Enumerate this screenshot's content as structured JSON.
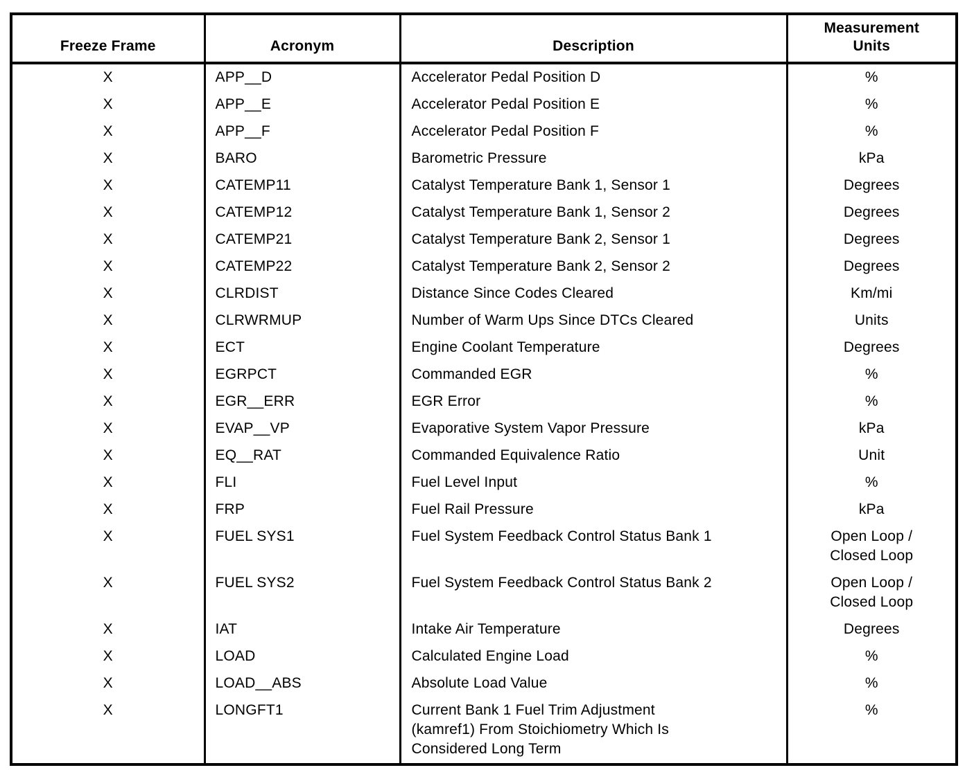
{
  "table": {
    "headers": {
      "freeze_frame": "Freeze Frame",
      "acronym": "Acronym",
      "description": "Description",
      "units": "Measurement\nUnits"
    },
    "rows": [
      {
        "freeze_frame": "X",
        "acronym": "APP__D",
        "description": "Accelerator Pedal Position D",
        "units": "%"
      },
      {
        "freeze_frame": "X",
        "acronym": "APP__E",
        "description": "Accelerator Pedal Position E",
        "units": "%"
      },
      {
        "freeze_frame": "X",
        "acronym": "APP__F",
        "description": "Accelerator Pedal Position F",
        "units": "%"
      },
      {
        "freeze_frame": "X",
        "acronym": "BARO",
        "description": "Barometric Pressure",
        "units": "kPa"
      },
      {
        "freeze_frame": "X",
        "acronym": "CATEMP11",
        "description": "Catalyst Temperature Bank 1, Sensor 1",
        "units": "Degrees"
      },
      {
        "freeze_frame": "X",
        "acronym": "CATEMP12",
        "description": "Catalyst Temperature Bank 1, Sensor 2",
        "units": "Degrees"
      },
      {
        "freeze_frame": "X",
        "acronym": "CATEMP21",
        "description": "Catalyst Temperature Bank 2, Sensor 1",
        "units": "Degrees"
      },
      {
        "freeze_frame": "X",
        "acronym": "CATEMP22",
        "description": "Catalyst Temperature Bank 2, Sensor 2",
        "units": "Degrees"
      },
      {
        "freeze_frame": "X",
        "acronym": "CLRDIST",
        "description": "Distance Since Codes Cleared",
        "units": "Km/mi"
      },
      {
        "freeze_frame": "X",
        "acronym": "CLRWRMUP",
        "description": "Number of Warm Ups Since DTCs Cleared",
        "units": "Units"
      },
      {
        "freeze_frame": "X",
        "acronym": "ECT",
        "description": "Engine Coolant Temperature",
        "units": "Degrees"
      },
      {
        "freeze_frame": "X",
        "acronym": "EGRPCT",
        "description": "Commanded EGR",
        "units": "%"
      },
      {
        "freeze_frame": "X",
        "acronym": "EGR__ERR",
        "description": "EGR Error",
        "units": "%"
      },
      {
        "freeze_frame": "X",
        "acronym": "EVAP__VP",
        "description": "Evaporative System Vapor Pressure",
        "units": "kPa"
      },
      {
        "freeze_frame": "X",
        "acronym": "EQ__RAT",
        "description": "Commanded Equivalence Ratio",
        "units": "Unit"
      },
      {
        "freeze_frame": "X",
        "acronym": "FLI",
        "description": "Fuel Level Input",
        "units": "%"
      },
      {
        "freeze_frame": "X",
        "acronym": "FRP",
        "description": "Fuel Rail Pressure",
        "units": "kPa"
      },
      {
        "freeze_frame": "X",
        "acronym": "FUEL SYS1",
        "description": "Fuel System Feedback Control Status Bank 1",
        "units": "Open Loop /\nClosed Loop"
      },
      {
        "freeze_frame": "X",
        "acronym": "FUEL SYS2",
        "description": "Fuel System Feedback Control Status Bank 2",
        "units": "Open Loop /\nClosed Loop"
      },
      {
        "freeze_frame": "X",
        "acronym": "IAT",
        "description": "Intake Air Temperature",
        "units": "Degrees"
      },
      {
        "freeze_frame": "X",
        "acronym": "LOAD",
        "description": "Calculated Engine Load",
        "units": "%"
      },
      {
        "freeze_frame": "X",
        "acronym": "LOAD__ABS",
        "description": "Absolute Load Value",
        "units": "%"
      },
      {
        "freeze_frame": "X",
        "acronym": "LONGFT1",
        "description": "Current Bank 1 Fuel Trim Adjustment\n(kamref1) From Stoichiometry Which Is\nConsidered Long Term",
        "units": "%"
      }
    ]
  }
}
